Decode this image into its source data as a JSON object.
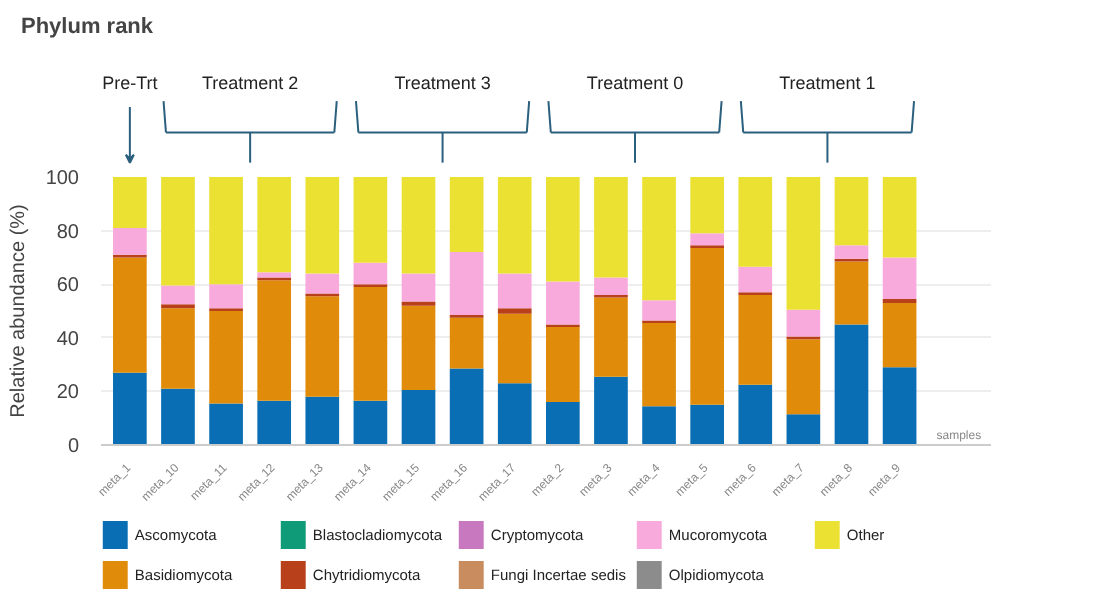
{
  "chart_data": {
    "type": "bar",
    "stacked": true,
    "title": "Phylum rank",
    "xlabel": "samples",
    "ylabel": "Relative abundance (%)",
    "categories": [
      "meta_1",
      "meta_10",
      "meta_11",
      "meta_12",
      "meta_13",
      "meta_14",
      "meta_15",
      "meta_16",
      "meta_17",
      "meta_2",
      "meta_3",
      "meta_4",
      "meta_5",
      "meta_6",
      "meta_7",
      "meta_8",
      "meta_9"
    ],
    "series": [
      {
        "name": "Ascomycota",
        "color": "#0a6eb4",
        "values": [
          27,
          21,
          15.5,
          16.5,
          18,
          16.5,
          20.5,
          28.5,
          23,
          16,
          25.5,
          14.5,
          15,
          22.5,
          11.5,
          45,
          29
        ]
      },
      {
        "name": "Basidiomycota",
        "color": "#e08c0a",
        "values": [
          43,
          30,
          34.5,
          45,
          37.5,
          42.5,
          31.5,
          19,
          26,
          28,
          29.5,
          31,
          58.5,
          33.5,
          28,
          23.5,
          24
        ]
      },
      {
        "name": "Blastocladiomycota",
        "color": "#0f9b78",
        "values": [
          0,
          0,
          0,
          0,
          0,
          0,
          0,
          0,
          0,
          0,
          0,
          0,
          0,
          0,
          0,
          0,
          0
        ]
      },
      {
        "name": "Chytridiomycota",
        "color": "#b8401a",
        "values": [
          1,
          1.5,
          1,
          1,
          1,
          1,
          1.5,
          1,
          2,
          1,
          1,
          1,
          1,
          1,
          1,
          1,
          1.5
        ]
      },
      {
        "name": "Cryptomycota",
        "color": "#c878be",
        "values": [
          0,
          0,
          0,
          0,
          0,
          0,
          0,
          0,
          0,
          0,
          0,
          0,
          0,
          0,
          0,
          0,
          0
        ]
      },
      {
        "name": "Fungi Incertae sedis",
        "color": "#c88c5f",
        "values": [
          0,
          0,
          0,
          0,
          0,
          0,
          0,
          0,
          0,
          0,
          0,
          0,
          0,
          0,
          0,
          0,
          0
        ]
      },
      {
        "name": "Mucoromycota",
        "color": "#f8aadc",
        "values": [
          10,
          7,
          9,
          2,
          7.5,
          8,
          10.5,
          23.5,
          13,
          16,
          6.5,
          7.5,
          4.5,
          9.5,
          10,
          5,
          15.5
        ]
      },
      {
        "name": "Olpidiomycota",
        "color": "#8c8c8c",
        "values": [
          0,
          0,
          0,
          0,
          0,
          0,
          0,
          0,
          0,
          0,
          0,
          0,
          0,
          0,
          0,
          0,
          0
        ]
      },
      {
        "name": "Other",
        "color": "#ebe132",
        "values": [
          19,
          40.5,
          40,
          35.5,
          36,
          32,
          36,
          28,
          36,
          39,
          37.5,
          46,
          21,
          33.5,
          49.5,
          25.5,
          30
        ]
      }
    ],
    "annotations": [
      "Pre-Trt",
      "Treatment 2",
      "Treatment 3",
      "Treatment 0",
      "Treatment 1"
    ],
    "ylim": [
      0,
      100
    ],
    "yticks": [
      0,
      20,
      40,
      60,
      80,
      100
    ],
    "grid": "y",
    "legend": "bottom"
  }
}
